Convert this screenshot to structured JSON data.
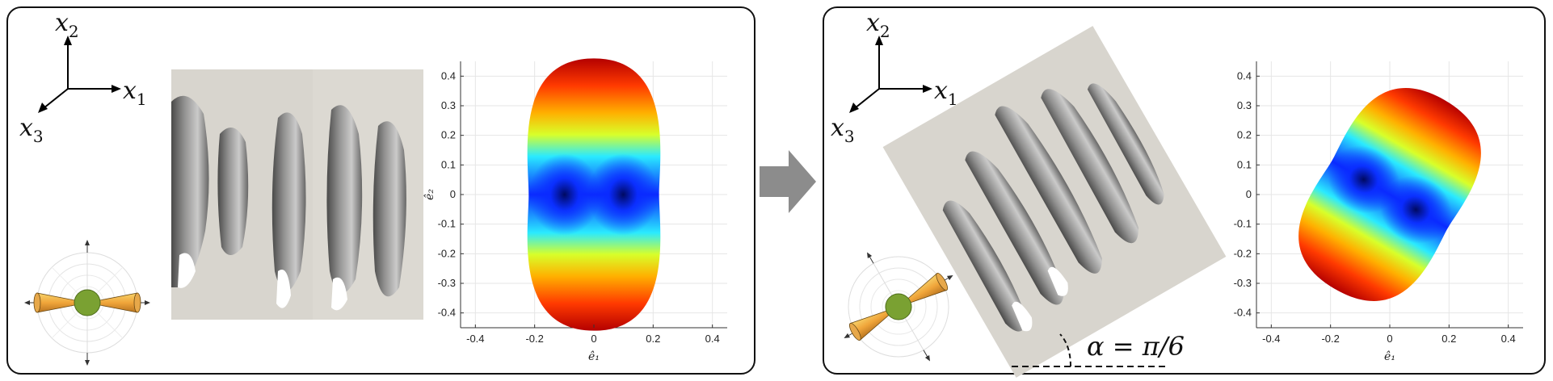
{
  "frame": {
    "x1": "x",
    "x1_sub": "1",
    "x2": "x",
    "x2_sub": "2",
    "x3": "x",
    "x3_sub": "3"
  },
  "annotation": {
    "alpha_label": "α = π/6"
  },
  "arrow": {
    "color": "#8c8c8c"
  },
  "chart_data": [
    {
      "type": "heatmap",
      "title": "",
      "xlabel": "ê₁",
      "ylabel": "ê₂",
      "xlim": [
        -0.45,
        0.45
      ],
      "ylim": [
        -0.45,
        0.45
      ],
      "xticks": [
        "-0.4",
        "-0.2",
        "0",
        "0.2",
        "0.4"
      ],
      "yticks": [
        "0.4",
        "0.3",
        "0.2",
        "0.1",
        "0",
        "-0.1",
        "-0.2",
        "-0.3",
        "-0.4"
      ],
      "grid": true,
      "shape_extent": {
        "x": [
          -0.22,
          0.22
        ],
        "y": [
          -0.46,
          0.46
        ]
      },
      "rotation_deg": 0
    },
    {
      "type": "heatmap",
      "title": "",
      "xlabel": "ê₁",
      "ylabel": "",
      "xlim": [
        -0.45,
        0.45
      ],
      "ylim": [
        -0.45,
        0.45
      ],
      "xticks": [
        "-0.4",
        "-0.2",
        "0",
        "0.2",
        "0.4"
      ],
      "yticks": [
        "0.4",
        "0.3",
        "0.2",
        "0.1",
        "0",
        "-0.1",
        "-0.2",
        "-0.3",
        "-0.4"
      ],
      "grid": true,
      "shape_extent": {
        "x": [
          -0.29,
          0.29
        ],
        "y": [
          -0.41,
          0.41
        ]
      },
      "rotation_deg": 30
    }
  ]
}
